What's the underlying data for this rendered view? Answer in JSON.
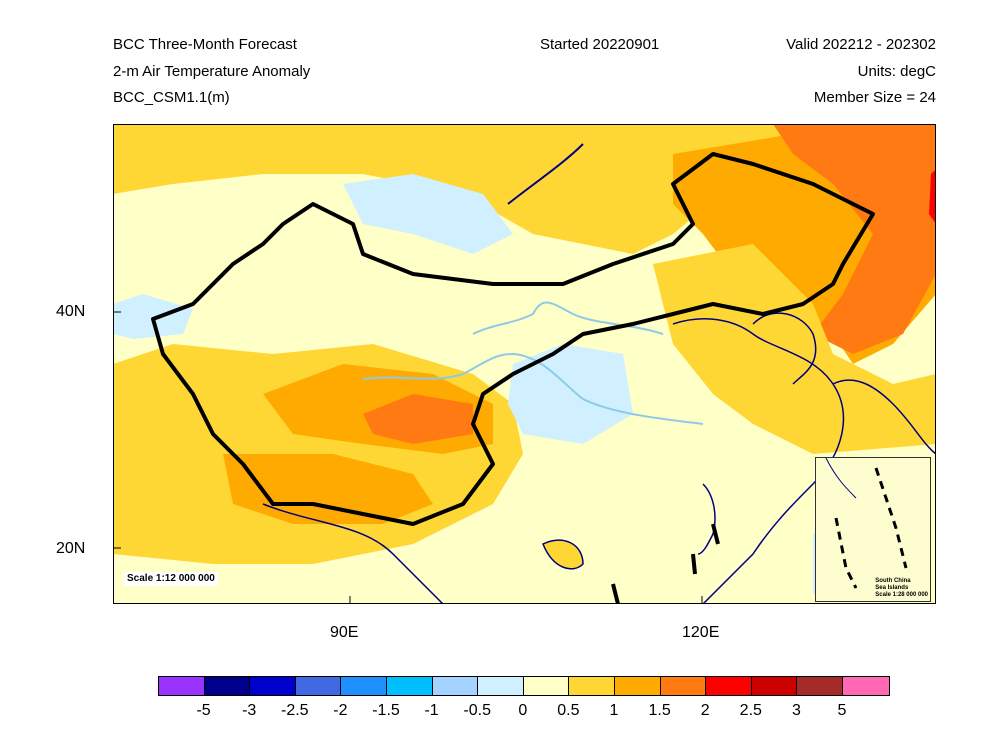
{
  "header": {
    "title": "BCC Three-Month Forecast",
    "variable": "2-m Air Temperature Anomaly",
    "model": "BCC_CSM1.1(m)",
    "started": "Started 20220901",
    "valid": "Valid 202212 - 202302",
    "units": "Units: degC",
    "member_size": "Member Size = 24"
  },
  "map": {
    "lat_labels": [
      "40N",
      "20N"
    ],
    "lon_labels": [
      "90E",
      "120E"
    ],
    "scale": "Scale 1:12 000 000",
    "inset": {
      "title_line1": "South China",
      "title_line2": "Sea Islands",
      "scale": "Scale 1:28 000 000"
    }
  },
  "colorbar": {
    "colors": [
      "#9933ff",
      "#00008b",
      "#0000cd",
      "#4169e1",
      "#1e90ff",
      "#00bfff",
      "#a4d3ff",
      "#d0f0ff",
      "#ffffc8",
      "#ffd734",
      "#ffaa00",
      "#ff7a12",
      "#ff0000",
      "#cd0000",
      "#a52a2a",
      "#ff69b4"
    ],
    "ticks": [
      "-5",
      "-3",
      "-2.5",
      "-2",
      "-1.5",
      "-1",
      "-0.5",
      "0",
      "0.5",
      "1",
      "1.5",
      "2",
      "2.5",
      "3",
      "5"
    ]
  }
}
